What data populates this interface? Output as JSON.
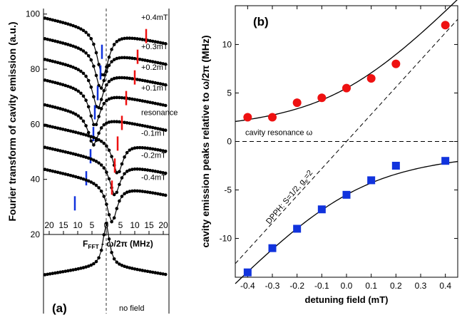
{
  "chart_data": [
    {
      "type": "line",
      "panel_label": "(a)",
      "ylabel": "Fourier transform of cavity emission (a.u.)",
      "xlabel": "F_FFT - ω/2π (MHz)",
      "xlim": [
        -22,
        22
      ],
      "ylim": [
        20,
        102
      ],
      "x_ticks": [
        -20,
        -15,
        -10,
        -5,
        0,
        5,
        10,
        15,
        20
      ],
      "x_tick_labels": [
        "20",
        "15",
        "10",
        "5",
        "0",
        "5",
        "10",
        "15",
        "20"
      ],
      "y_ticks": [
        20,
        40,
        60,
        80,
        100
      ],
      "series": [
        {
          "name": "+0.4mT",
          "baseline": 94,
          "dip_x": -1.5,
          "dip_depth": 14,
          "dip2_x": 0,
          "marker_blue_x": -1.5,
          "marker_red_x": 14
        },
        {
          "name": "+0.3mT",
          "baseline": 86.5,
          "dip_x": -2,
          "dip_depth": 14,
          "marker_blue_x": -2,
          "marker_red_x": 11
        },
        {
          "name": "+0.2mT",
          "baseline": 79,
          "dip_x": -3,
          "dip_depth": 14,
          "marker_blue_x": -3,
          "marker_red_x": 10
        },
        {
          "name": "+0.1mT",
          "baseline": 71.5,
          "dip_x": -4,
          "dip_depth": 13,
          "marker_blue_x": -4,
          "marker_red_x": 7
        },
        {
          "name": "resonance",
          "baseline": 62.5,
          "dip_x": -4.5,
          "dip_depth": 11,
          "marker_blue_x": -4.5,
          "marker_red_x": 5.5
        },
        {
          "name": "-0.1mT",
          "baseline": 55,
          "dip_x": 4,
          "dip_depth": 12,
          "marker_blue_x": -5.5,
          "marker_red_x": 4
        },
        {
          "name": "-0.2mT",
          "baseline": 47,
          "dip_x": 3,
          "dip_depth": 12,
          "marker_blue_x": -7,
          "marker_red_x": 3
        },
        {
          "name": "-0.4mT",
          "baseline": 39,
          "dip_x": 2,
          "dip_depth": 14,
          "marker_blue_x": -11,
          "marker_red_x": 2
        }
      ],
      "bottom_trace": {
        "name": "no field",
        "baseline": 11,
        "dip_x": 0,
        "dip_depth": 18
      }
    },
    {
      "type": "scatter",
      "panel_label": "(b)",
      "xlabel": "detuning field (mT)",
      "ylabel": "cavity emission peaks relative to ω/2π (MHz)",
      "xlim": [
        -0.45,
        0.45
      ],
      "ylim": [
        -14,
        14
      ],
      "x_ticks": [
        -0.4,
        -0.3,
        -0.2,
        -0.1,
        0.0,
        0.1,
        0.2,
        0.3,
        0.4
      ],
      "y_ticks": [
        -10,
        -5,
        0,
        5,
        10
      ],
      "series": [
        {
          "name": "upper peak",
          "marker": "circle",
          "color": "#ee1111",
          "x": [
            -0.4,
            -0.3,
            -0.2,
            -0.1,
            0.0,
            0.1,
            0.2,
            0.4
          ],
          "y": [
            2.5,
            2.5,
            4.0,
            4.5,
            5.5,
            6.5,
            8.0,
            12.0
          ]
        },
        {
          "name": "lower peak",
          "marker": "square",
          "color": "#1133dd",
          "x": [
            -0.4,
            -0.3,
            -0.2,
            -0.1,
            0.0,
            0.1,
            0.2,
            0.4
          ],
          "y": [
            -13.5,
            -11.0,
            -9.0,
            -7.0,
            -5.5,
            -4.0,
            -2.5,
            -2.0
          ]
        }
      ],
      "annotations": [
        "cavity resonance ω",
        "DPPH: S=1/2, g_e=2"
      ],
      "coupling_g": 5.5,
      "spin_slope": 28
    }
  ]
}
